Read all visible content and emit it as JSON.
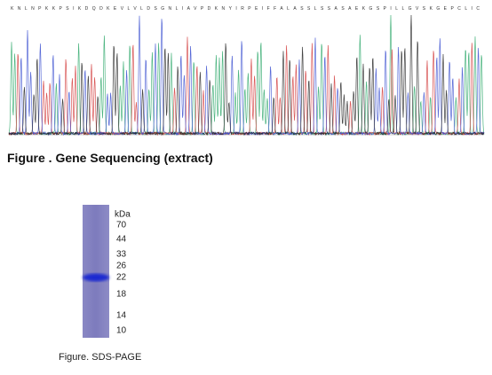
{
  "sequencing": {
    "sequence": "KNLNPKKPSIKDQDKEVLVLDSGNLIAVPDKNYIRPEIFFALASSLSSASAEKGSPILLGVSKGEPCLIC",
    "caption": "Figure . Gene Sequencing (extract)"
  },
  "gel": {
    "unit": "kDa",
    "markers": [
      "70",
      "44",
      "33",
      "26",
      "22",
      "18",
      "14",
      "10"
    ],
    "caption": "Figure. SDS-PAGE"
  }
}
